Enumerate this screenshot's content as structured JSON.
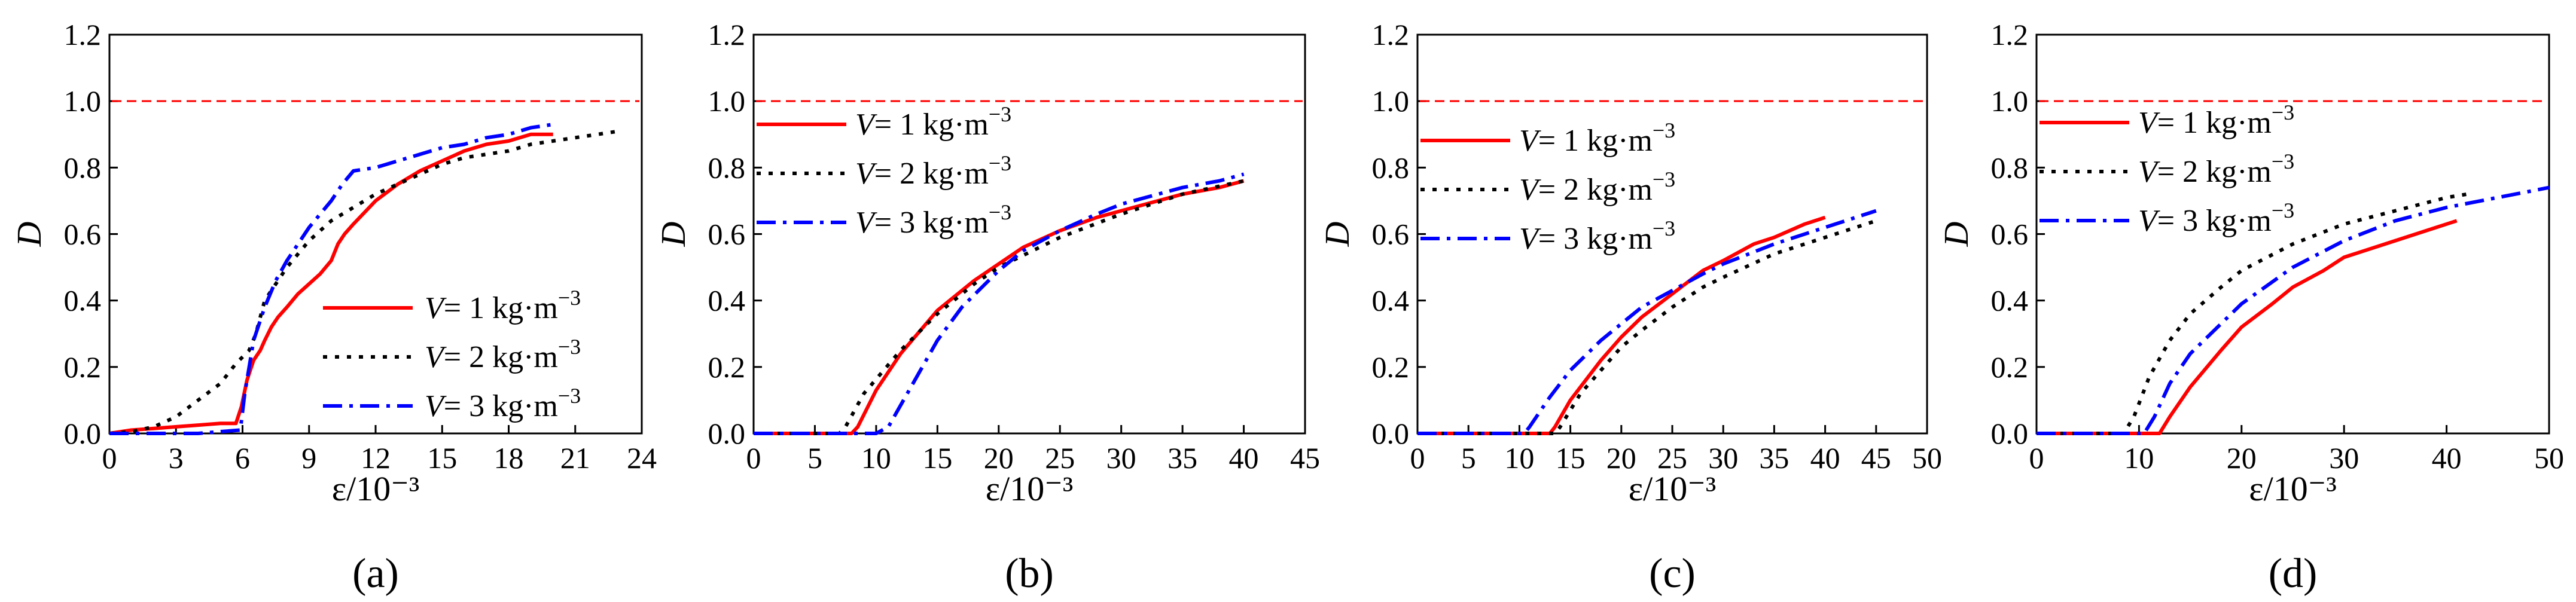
{
  "chart_data": [
    {
      "type": "line",
      "panel_label": "(a)",
      "xlabel": "ε/10⁻³",
      "ylabel": "D",
      "xlim": [
        0,
        24
      ],
      "ylim": [
        0,
        1.2
      ],
      "xticks": [
        "0",
        "3",
        "6",
        "9",
        "12",
        "15",
        "18",
        "21",
        "24"
      ],
      "yticks": [
        "0.0",
        "0.2",
        "0.4",
        "0.6",
        "0.8",
        "1.0",
        "1.2"
      ],
      "reference_line": 1.0,
      "legend_position": "lower-right",
      "series": [
        {
          "name": "V = 1 kg·m⁻³",
          "label_var": "V",
          "label_rest": "= 1 kg·m",
          "label_exp": "−3",
          "color": "#ff0000",
          "dash": "solid",
          "x": [
            0,
            1,
            2,
            3,
            4,
            5,
            5.7,
            5.95,
            6.2,
            6.5,
            6.8,
            7.0,
            7.3,
            7.6,
            8.0,
            8.5,
            9.0,
            9.5,
            10.0,
            10.3,
            10.6,
            11,
            12,
            13,
            14,
            15,
            16,
            17,
            18,
            19,
            20
          ],
          "y": [
            0,
            0.01,
            0.015,
            0.02,
            0.025,
            0.03,
            0.03,
            0.08,
            0.16,
            0.22,
            0.25,
            0.28,
            0.32,
            0.35,
            0.38,
            0.42,
            0.45,
            0.48,
            0.52,
            0.57,
            0.6,
            0.63,
            0.7,
            0.75,
            0.79,
            0.82,
            0.85,
            0.87,
            0.88,
            0.9,
            0.9
          ]
        },
        {
          "name": "V = 2 kg·m⁻³",
          "label_var": "V",
          "label_rest": "= 2 kg·m",
          "label_exp": "−3",
          "color": "#000000",
          "dash": "dotted",
          "x": [
            0,
            1,
            2,
            3,
            4,
            5,
            5.7,
            6.0,
            6.3,
            6.6,
            7,
            8,
            9,
            10,
            11,
            12,
            13,
            14,
            15,
            16,
            17,
            18,
            19,
            20,
            21,
            22,
            23
          ],
          "y": [
            0,
            0.005,
            0.02,
            0.05,
            0.1,
            0.15,
            0.21,
            0.23,
            0.25,
            0.3,
            0.4,
            0.5,
            0.58,
            0.64,
            0.68,
            0.72,
            0.75,
            0.78,
            0.81,
            0.83,
            0.84,
            0.85,
            0.87,
            0.88,
            0.89,
            0.9,
            0.91
          ]
        },
        {
          "name": "V = 3 kg·m⁻³",
          "label_var": "V",
          "label_rest": "= 3 kg·m",
          "label_exp": "−3",
          "color": "#0000ff",
          "dash": "dashdot",
          "x": [
            0,
            2,
            4,
            5.9,
            6.1,
            6.5,
            7.0,
            7.5,
            8,
            9,
            10,
            10.5,
            11,
            12,
            13,
            14,
            15,
            16,
            17,
            18,
            19,
            20
          ],
          "y": [
            0,
            0,
            0,
            0.01,
            0.12,
            0.28,
            0.38,
            0.46,
            0.52,
            0.62,
            0.7,
            0.75,
            0.79,
            0.8,
            0.82,
            0.84,
            0.86,
            0.87,
            0.89,
            0.9,
            0.92,
            0.93
          ]
        }
      ]
    },
    {
      "type": "line",
      "panel_label": "(b)",
      "xlabel": "ε/10⁻³",
      "ylabel": "D",
      "xlim": [
        0,
        45
      ],
      "ylim": [
        0,
        1.2
      ],
      "xticks": [
        "0",
        "5",
        "10",
        "15",
        "20",
        "25",
        "30",
        "35",
        "40",
        "45"
      ],
      "yticks": [
        "0.0",
        "0.2",
        "0.4",
        "0.6",
        "0.8",
        "1.0",
        "1.2"
      ],
      "reference_line": 1.0,
      "legend_position": "upper-left",
      "series": [
        {
          "name": "V = 1 kg·m⁻³",
          "label_var": "V",
          "label_rest": "= 1 kg·m",
          "label_exp": "−3",
          "color": "#ff0000",
          "dash": "solid",
          "x": [
            0,
            4,
            8,
            8.5,
            10,
            12,
            15,
            18,
            20,
            22,
            25,
            28,
            30,
            32,
            35,
            38,
            40
          ],
          "y": [
            0,
            0,
            0,
            0.02,
            0.13,
            0.24,
            0.37,
            0.46,
            0.51,
            0.56,
            0.61,
            0.65,
            0.67,
            0.69,
            0.72,
            0.74,
            0.76
          ]
        },
        {
          "name": "V = 2 kg·m⁻³",
          "label_var": "V",
          "label_rest": "= 2 kg·m",
          "label_exp": "−3",
          "color": "#000000",
          "dash": "dotted",
          "x": [
            0,
            4,
            7,
            7.5,
            9,
            12,
            15,
            18,
            20,
            25,
            30,
            35,
            40
          ],
          "y": [
            0,
            0,
            0,
            0.02,
            0.12,
            0.25,
            0.36,
            0.45,
            0.5,
            0.59,
            0.66,
            0.72,
            0.76
          ]
        },
        {
          "name": "V = 3 kg·m⁻³",
          "label_var": "V",
          "label_rest": "= 3 kg·m",
          "label_exp": "−3",
          "color": "#0000ff",
          "dash": "dashdot",
          "x": [
            0,
            5,
            10,
            11,
            13,
            15,
            17,
            20,
            22,
            25,
            28,
            30,
            33,
            35,
            38,
            40
          ],
          "y": [
            0,
            0,
            0,
            0.02,
            0.15,
            0.28,
            0.38,
            0.49,
            0.55,
            0.61,
            0.66,
            0.69,
            0.72,
            0.74,
            0.76,
            0.78
          ]
        }
      ]
    },
    {
      "type": "line",
      "panel_label": "(c)",
      "xlabel": "ε/10⁻³",
      "ylabel": "D",
      "xlim": [
        0,
        50
      ],
      "ylim": [
        0,
        1.2
      ],
      "xticks": [
        "0",
        "5",
        "10",
        "15",
        "20",
        "25",
        "30",
        "35",
        "40",
        "45",
        "50"
      ],
      "yticks": [
        "0.0",
        "0.2",
        "0.4",
        "0.6",
        "0.8",
        "1.0",
        "1.2"
      ],
      "reference_line": 1.0,
      "legend_position": "upper-left",
      "series": [
        {
          "name": "V = 1 kg·m⁻³",
          "label_var": "V",
          "label_rest": "= 1 kg·m",
          "label_exp": "−3",
          "color": "#ff0000",
          "dash": "solid",
          "x": [
            0,
            6,
            13,
            13.5,
            15,
            18,
            20,
            22,
            25,
            28,
            30,
            33,
            35,
            38,
            40
          ],
          "y": [
            0,
            0,
            0,
            0.02,
            0.1,
            0.22,
            0.29,
            0.35,
            0.42,
            0.49,
            0.52,
            0.57,
            0.59,
            0.63,
            0.65
          ]
        },
        {
          "name": "V = 2 kg·m⁻³",
          "label_var": "V",
          "label_rest": "= 2 kg·m",
          "label_exp": "−3",
          "color": "#000000",
          "dash": "dotted",
          "x": [
            0,
            6,
            13.5,
            14,
            16,
            18,
            20,
            22,
            25,
            28,
            30,
            35,
            40,
            45
          ],
          "y": [
            0,
            0,
            0,
            0.02,
            0.12,
            0.19,
            0.26,
            0.31,
            0.38,
            0.44,
            0.47,
            0.54,
            0.59,
            0.64
          ]
        },
        {
          "name": "V = 3 kg·m⁻³",
          "label_var": "V",
          "label_rest": "= 3 kg·m",
          "label_exp": "−3",
          "color": "#0000ff",
          "dash": "dashdot",
          "x": [
            0,
            5,
            10.5,
            11,
            13,
            15,
            18,
            20,
            22,
            25,
            28,
            30,
            35,
            40,
            45
          ],
          "y": [
            0,
            0,
            0,
            0.02,
            0.11,
            0.19,
            0.28,
            0.33,
            0.38,
            0.43,
            0.48,
            0.51,
            0.57,
            0.62,
            0.67
          ]
        }
      ]
    },
    {
      "type": "line",
      "panel_label": "(d)",
      "xlabel": "ε/10⁻³",
      "ylabel": "D",
      "xlim": [
        0,
        50
      ],
      "ylim": [
        0,
        1.2
      ],
      "xticks": [
        "0",
        "10",
        "20",
        "30",
        "40",
        "50"
      ],
      "yticks": [
        "0.0",
        "0.2",
        "0.4",
        "0.6",
        "0.8",
        "1.0",
        "1.2"
      ],
      "reference_line": 1.0,
      "legend_position": "upper-left",
      "series": [
        {
          "name": "V = 1 kg·m⁻³",
          "label_var": "V",
          "label_rest": "= 1 kg·m",
          "label_exp": "−3",
          "color": "#ff0000",
          "dash": "solid",
          "x": [
            0,
            6,
            12,
            13,
            15,
            18,
            20,
            23,
            25,
            28,
            30,
            35,
            40,
            41
          ],
          "y": [
            0,
            0,
            0,
            0.05,
            0.14,
            0.25,
            0.32,
            0.39,
            0.44,
            0.49,
            0.53,
            0.58,
            0.63,
            0.64
          ]
        },
        {
          "name": "V = 2 kg·m⁻³",
          "label_var": "V",
          "label_rest": "= 2 kg·m",
          "label_exp": "−3",
          "color": "#000000",
          "dash": "dotted",
          "x": [
            0,
            5,
            8.5,
            9.5,
            11,
            13,
            15,
            18,
            20,
            25,
            30,
            35,
            40,
            42
          ],
          "y": [
            0,
            0,
            0,
            0.05,
            0.17,
            0.28,
            0.36,
            0.44,
            0.49,
            0.57,
            0.63,
            0.67,
            0.71,
            0.72
          ]
        },
        {
          "name": "V = 3 kg·m⁻³",
          "label_var": "V",
          "label_rest": "= 3 kg·m",
          "label_exp": "−3",
          "color": "#0000ff",
          "dash": "dashdot",
          "x": [
            0,
            5,
            10.5,
            11.5,
            13,
            15,
            18,
            20,
            25,
            30,
            35,
            40,
            45,
            50
          ],
          "y": [
            0,
            0,
            0,
            0.05,
            0.15,
            0.24,
            0.33,
            0.39,
            0.5,
            0.58,
            0.64,
            0.68,
            0.71,
            0.74
          ]
        }
      ]
    }
  ]
}
